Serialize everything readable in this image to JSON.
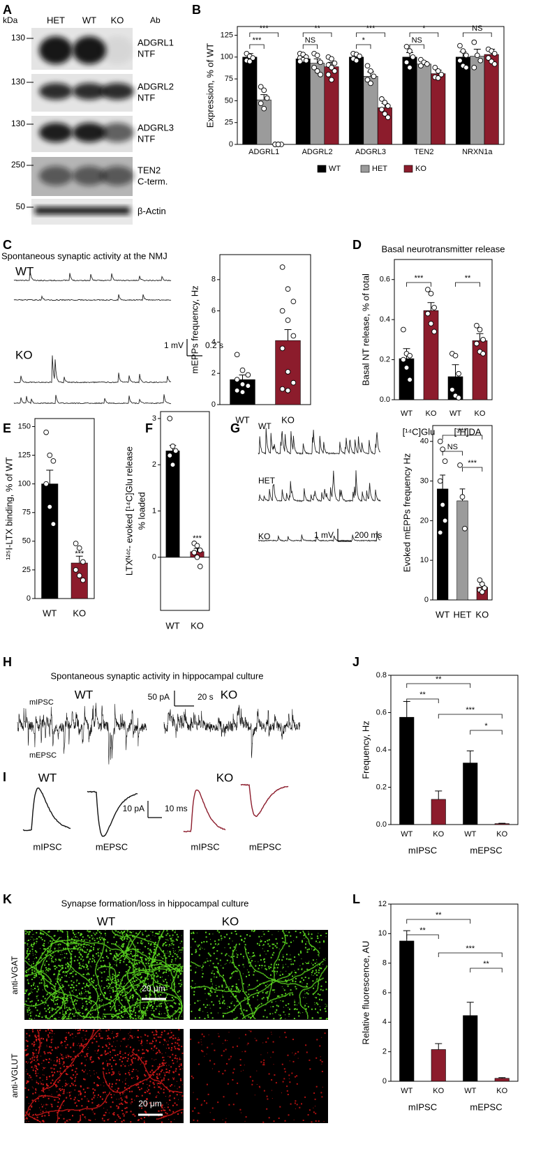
{
  "panel_labels": [
    "A",
    "B",
    "C",
    "D",
    "E",
    "F",
    "G",
    "H",
    "I",
    "J",
    "K",
    "L"
  ],
  "blot": {
    "kda": "kDa",
    "lanes": [
      "HET",
      "WT",
      "KO"
    ],
    "ab": "Ab",
    "rows": [
      {
        "marker": "130",
        "antibody": [
          "ADGRL1",
          "NTF"
        ]
      },
      {
        "marker": "130",
        "antibody": [
          "ADGRL2",
          "NTF"
        ]
      },
      {
        "marker": "130",
        "antibody": [
          "ADGRL3",
          "NTF"
        ]
      },
      {
        "marker": "250",
        "antibody": [
          "TEN2",
          "C-term."
        ]
      },
      {
        "marker": "50",
        "antibody": [
          "β-Actin"
        ]
      }
    ]
  },
  "traces": {
    "C": {
      "title": "Spontaneous synaptic activity at the NMJ",
      "labels": [
        "WT",
        "KO"
      ],
      "scale": [
        "1 mV",
        "0.2 s"
      ]
    },
    "G": {
      "labels": [
        "WT",
        "HET",
        "KO"
      ],
      "scale": [
        "1 mV",
        "200 ms"
      ]
    },
    "H": {
      "title": "Spontaneous synaptic activity in hippocampal culture",
      "labels": [
        "WT",
        "KO"
      ],
      "currents": [
        "mIPSC",
        "mEPSC"
      ],
      "scale": [
        "50 pA",
        "20 s"
      ]
    },
    "I": {
      "labels": [
        "WT",
        "KO"
      ],
      "events": [
        "mIPSC",
        "mEPSC",
        "mIPSC",
        "mEPSC"
      ],
      "scale": [
        "10 pA",
        "10 ms"
      ]
    }
  },
  "images": {
    "K": {
      "title": "Synapse formation/loss in hippocampal culture",
      "columns": [
        "WT",
        "KO"
      ],
      "rows": [
        "anti-VGAT",
        "anti-VGLUT"
      ],
      "scale": [
        "20 μm",
        "20 μm"
      ]
    }
  },
  "chart_data": [
    {
      "type": "bar",
      "ylabel": "Expression, % of WT",
      "categories": [
        "ADGRL1",
        "ADGRL2",
        "ADGRL3",
        "TEN2",
        "NRXN1a"
      ],
      "series": [
        {
          "name": "WT",
          "color": "#000000",
          "values": [
            100,
            98,
            100,
            100,
            100
          ],
          "errors": [
            4,
            2,
            3,
            5,
            6
          ],
          "points": [
            [
              104,
              101,
              99,
              96,
              95
            ],
            [
              104,
              103,
              100,
              99,
              97,
              96,
              95
            ],
            [
              104,
              103,
              101,
              98,
              96
            ],
            [
              112,
              107,
              100,
              94,
              88
            ],
            [
              113,
              107,
              102,
              96,
              90,
              88
            ]
          ]
        },
        {
          "name": "HET",
          "color": "#9b9b9b",
          "values": [
            51,
            93,
            78,
            92,
            101
          ],
          "errors": [
            6,
            5,
            5,
            3,
            8
          ],
          "points": [
            [
              66,
              62,
              53,
              47,
              41
            ],
            [
              104,
              102,
              94,
              88,
              84,
              80
            ],
            [
              90,
              84,
              78,
              74,
              70
            ],
            [
              97,
              94,
              92,
              90
            ],
            [
              117,
              102,
              96,
              88
            ]
          ]
        },
        {
          "name": "KO",
          "color": "#8c1c2c",
          "values": [
            0,
            89,
            42,
            81,
            103
          ],
          "errors": [
            0,
            5,
            5,
            4,
            6
          ],
          "points": [
            [
              0,
              0,
              0,
              0,
              0
            ],
            [
              100,
              98,
              93,
              91,
              88,
              84,
              80,
              74
            ],
            [
              52,
              48,
              44,
              40,
              35,
              31
            ],
            [
              88,
              84,
              80,
              77,
              76
            ],
            [
              109,
              107,
              104,
              99,
              95,
              92
            ]
          ]
        }
      ],
      "ylim": [
        0,
        135
      ],
      "yticks": [
        0,
        25,
        50,
        75,
        100,
        125
      ],
      "annotations": [
        "***",
        "***",
        "**",
        "NS",
        "***",
        "*",
        "*",
        "NS",
        "NS"
      ]
    },
    {
      "type": "bar",
      "ylabel": "mEPPs frequency, Hz",
      "categories": [
        "WT",
        "KO"
      ],
      "values": [
        1.6,
        4.1
      ],
      "errors": [
        0.3,
        0.7
      ],
      "colors": [
        "#000000",
        "#8c1c2c"
      ],
      "points": [
        [
          3.2,
          2.2,
          1.9,
          1.6,
          1.3,
          1.2,
          0.9,
          0.8
        ],
        [
          8.8,
          7.4,
          6.6,
          6.0,
          5.4,
          4.4,
          3.6,
          2.1,
          1.4,
          1.0,
          0.9
        ]
      ],
      "ylim": [
        0,
        9.6
      ],
      "yticks": [
        0,
        2,
        4,
        6,
        8
      ],
      "annotations": []
    },
    {
      "type": "bar",
      "title": "Basal neurotransmitter release",
      "ylabel": "Basal NT release, % of total",
      "categories": [
        "WT",
        "KO",
        "WT",
        "KO"
      ],
      "groups": [
        "[¹⁴C]Glu",
        "[³H]DA"
      ],
      "values": [
        0.205,
        0.445,
        0.115,
        0.295
      ],
      "errors": [
        0.05,
        0.04,
        0.06,
        0.035
      ],
      "colors": [
        "#000000",
        "#8c1c2c",
        "#000000",
        "#8c1c2c"
      ],
      "points": [
        [
          0.35,
          0.23,
          0.22,
          0.2,
          0.16,
          0.1
        ],
        [
          0.55,
          0.53,
          0.46,
          0.43,
          0.38,
          0.34
        ],
        [
          0.23,
          0.22,
          0.13,
          0.05,
          0.02,
          0.01
        ],
        [
          0.37,
          0.35,
          0.3,
          0.28,
          0.24,
          0.23
        ]
      ],
      "ylim": [
        0,
        0.7
      ],
      "yticks": [
        {
          "value": 0,
          "label": "0.0"
        },
        0.2,
        0.4,
        0.6
      ],
      "annotations": [
        "***",
        "**"
      ]
    },
    {
      "type": "bar",
      "ylabel": "¹²⁵I-LTX binding, % of WT",
      "categories": [
        "WT",
        "KO"
      ],
      "values": [
        100,
        31
      ],
      "errors": [
        12,
        6
      ],
      "colors": [
        "#000000",
        "#8c1c2c"
      ],
      "points": [
        [
          145,
          125,
          120,
          100,
          80,
          65
        ],
        [
          48,
          44,
          32,
          25,
          20,
          16
        ]
      ],
      "ylim": [
        0,
        157
      ],
      "yticks": [
        0,
        25,
        50,
        75,
        100,
        125,
        150
      ],
      "annotations": [
        "***"
      ]
    },
    {
      "type": "bar",
      "ylabel": [
        "LTXᴺ⁴ᶜ- evoked [¹⁴C]Glu release",
        "% loaded"
      ],
      "categories": [
        "WT",
        "KO"
      ],
      "values": [
        2.3,
        0.12
      ],
      "errors": [
        0.12,
        0.07
      ],
      "colors": [
        "#000000",
        "#8c1c2c"
      ],
      "points": [
        [
          3.0,
          2.4,
          2.3,
          2.2,
          2.0
        ],
        [
          0.3,
          0.25,
          0.15,
          0.1,
          0.0,
          -0.2
        ]
      ],
      "ylim": [
        -1.15,
        3.15
      ],
      "yticks": [
        0,
        1,
        2,
        3
      ],
      "annotations": [
        "***"
      ]
    },
    {
      "type": "bar",
      "ylabel": "Evoked mEPPs frequency Hz",
      "categories": [
        "WT",
        "HET",
        "KO"
      ],
      "values": [
        28,
        25,
        3.2
      ],
      "errors": [
        3.5,
        3,
        0.6
      ],
      "colors": [
        "#000000",
        "#9b9b9b",
        "#8c1c2c"
      ],
      "points": [
        [
          40,
          38,
          35,
          30,
          24,
          20,
          17
        ],
        [
          34,
          26,
          18
        ],
        [
          5,
          4,
          3,
          2.5,
          2
        ]
      ],
      "ylim": [
        0,
        44
      ],
      "yticks": [
        0,
        10,
        20,
        30,
        40
      ],
      "annotations": [
        "***",
        "NS",
        "***"
      ]
    },
    {
      "type": "bar",
      "ylabel": "Frequency, Hz",
      "categories": [
        "WT",
        "KO",
        "WT",
        "KO"
      ],
      "groups": [
        "mIPSC",
        "mEPSC"
      ],
      "values": [
        0.575,
        0.135,
        0.33,
        0.005
      ],
      "errors": [
        0.085,
        0.045,
        0.065,
        0.002
      ],
      "colors": [
        "#000000",
        "#8c1c2c",
        "#000000",
        "#8c1c2c"
      ],
      "ylim": [
        0,
        0.8
      ],
      "yticks": [
        {
          "value": 0,
          "label": "0.0"
        },
        0.2,
        0.4,
        0.6,
        0.8
      ],
      "annotations": [
        "**",
        "**",
        "***",
        "*"
      ]
    },
    {
      "type": "bar",
      "ylabel": "Relative fluorescence, AU",
      "categories": [
        "WT",
        "KO",
        "WT",
        "KO"
      ],
      "groups": [
        "mIPSC",
        "mEPSC"
      ],
      "values": [
        9.5,
        2.15,
        4.45,
        0.2
      ],
      "errors": [
        0.7,
        0.4,
        0.9,
        0.05
      ],
      "colors": [
        "#000000",
        "#8c1c2c",
        "#000000",
        "#8c1c2c"
      ],
      "ylim": [
        0,
        12
      ],
      "yticks": [
        0,
        2,
        4,
        6,
        8,
        10,
        12
      ],
      "annotations": [
        "**",
        "**",
        "***",
        "**"
      ]
    }
  ]
}
